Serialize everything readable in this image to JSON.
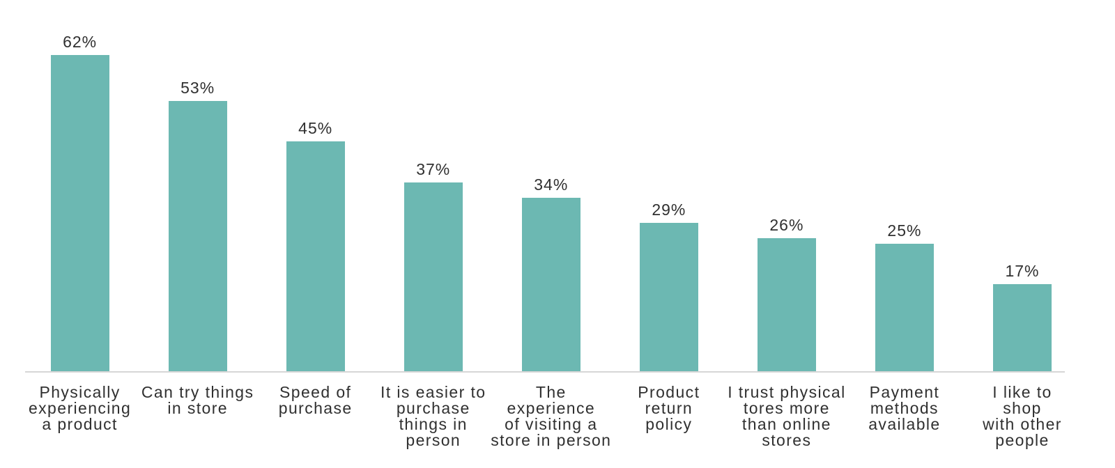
{
  "chart_data": {
    "type": "bar",
    "title": "",
    "xlabel": "",
    "ylabel": "",
    "ylim": [
      0,
      68
    ],
    "grid": false,
    "legend": false,
    "value_suffix": "%",
    "categories": [
      "Physically experiencing a product",
      "Can try things in store",
      "Speed of purchase",
      "It is easier to purchase things in person",
      "The experience of visiting a store in person",
      "Product return policy",
      "I trust physical tores more than online stores",
      "Payment methods available",
      "I like to shop with other people"
    ],
    "values": [
      62,
      53,
      45,
      37,
      34,
      29,
      26,
      25,
      17
    ],
    "bars": [
      {
        "label_lines": [
          "Physically",
          "experiencing",
          "a product"
        ],
        "value_label": "62%",
        "value": 62
      },
      {
        "label_lines": [
          "Can try things",
          "in store"
        ],
        "value_label": "53%",
        "value": 53
      },
      {
        "label_lines": [
          "Speed of",
          "purchase"
        ],
        "value_label": "45%",
        "value": 45
      },
      {
        "label_lines": [
          "It is easier to",
          "purchase",
          "things in",
          "person"
        ],
        "value_label": "37%",
        "value": 37
      },
      {
        "label_lines": [
          "The",
          "experience",
          "of visiting a",
          "store in person"
        ],
        "value_label": "34%",
        "value": 34
      },
      {
        "label_lines": [
          "Product",
          "return",
          "policy"
        ],
        "value_label": "29%",
        "value": 29
      },
      {
        "label_lines": [
          "I trust physical",
          "tores more",
          "than online",
          "stores"
        ],
        "value_label": "26%",
        "value": 26
      },
      {
        "label_lines": [
          "Payment",
          "methods",
          "available"
        ],
        "value_label": "25%",
        "value": 25
      },
      {
        "label_lines": [
          "I like to",
          "shop",
          "with other",
          "people"
        ],
        "value_label": "17%",
        "value": 17
      }
    ],
    "colors": {
      "bar": "#6cb8b2",
      "text": "#303030",
      "axis_line": "#d6d6d6",
      "background": "#ffffff"
    }
  }
}
